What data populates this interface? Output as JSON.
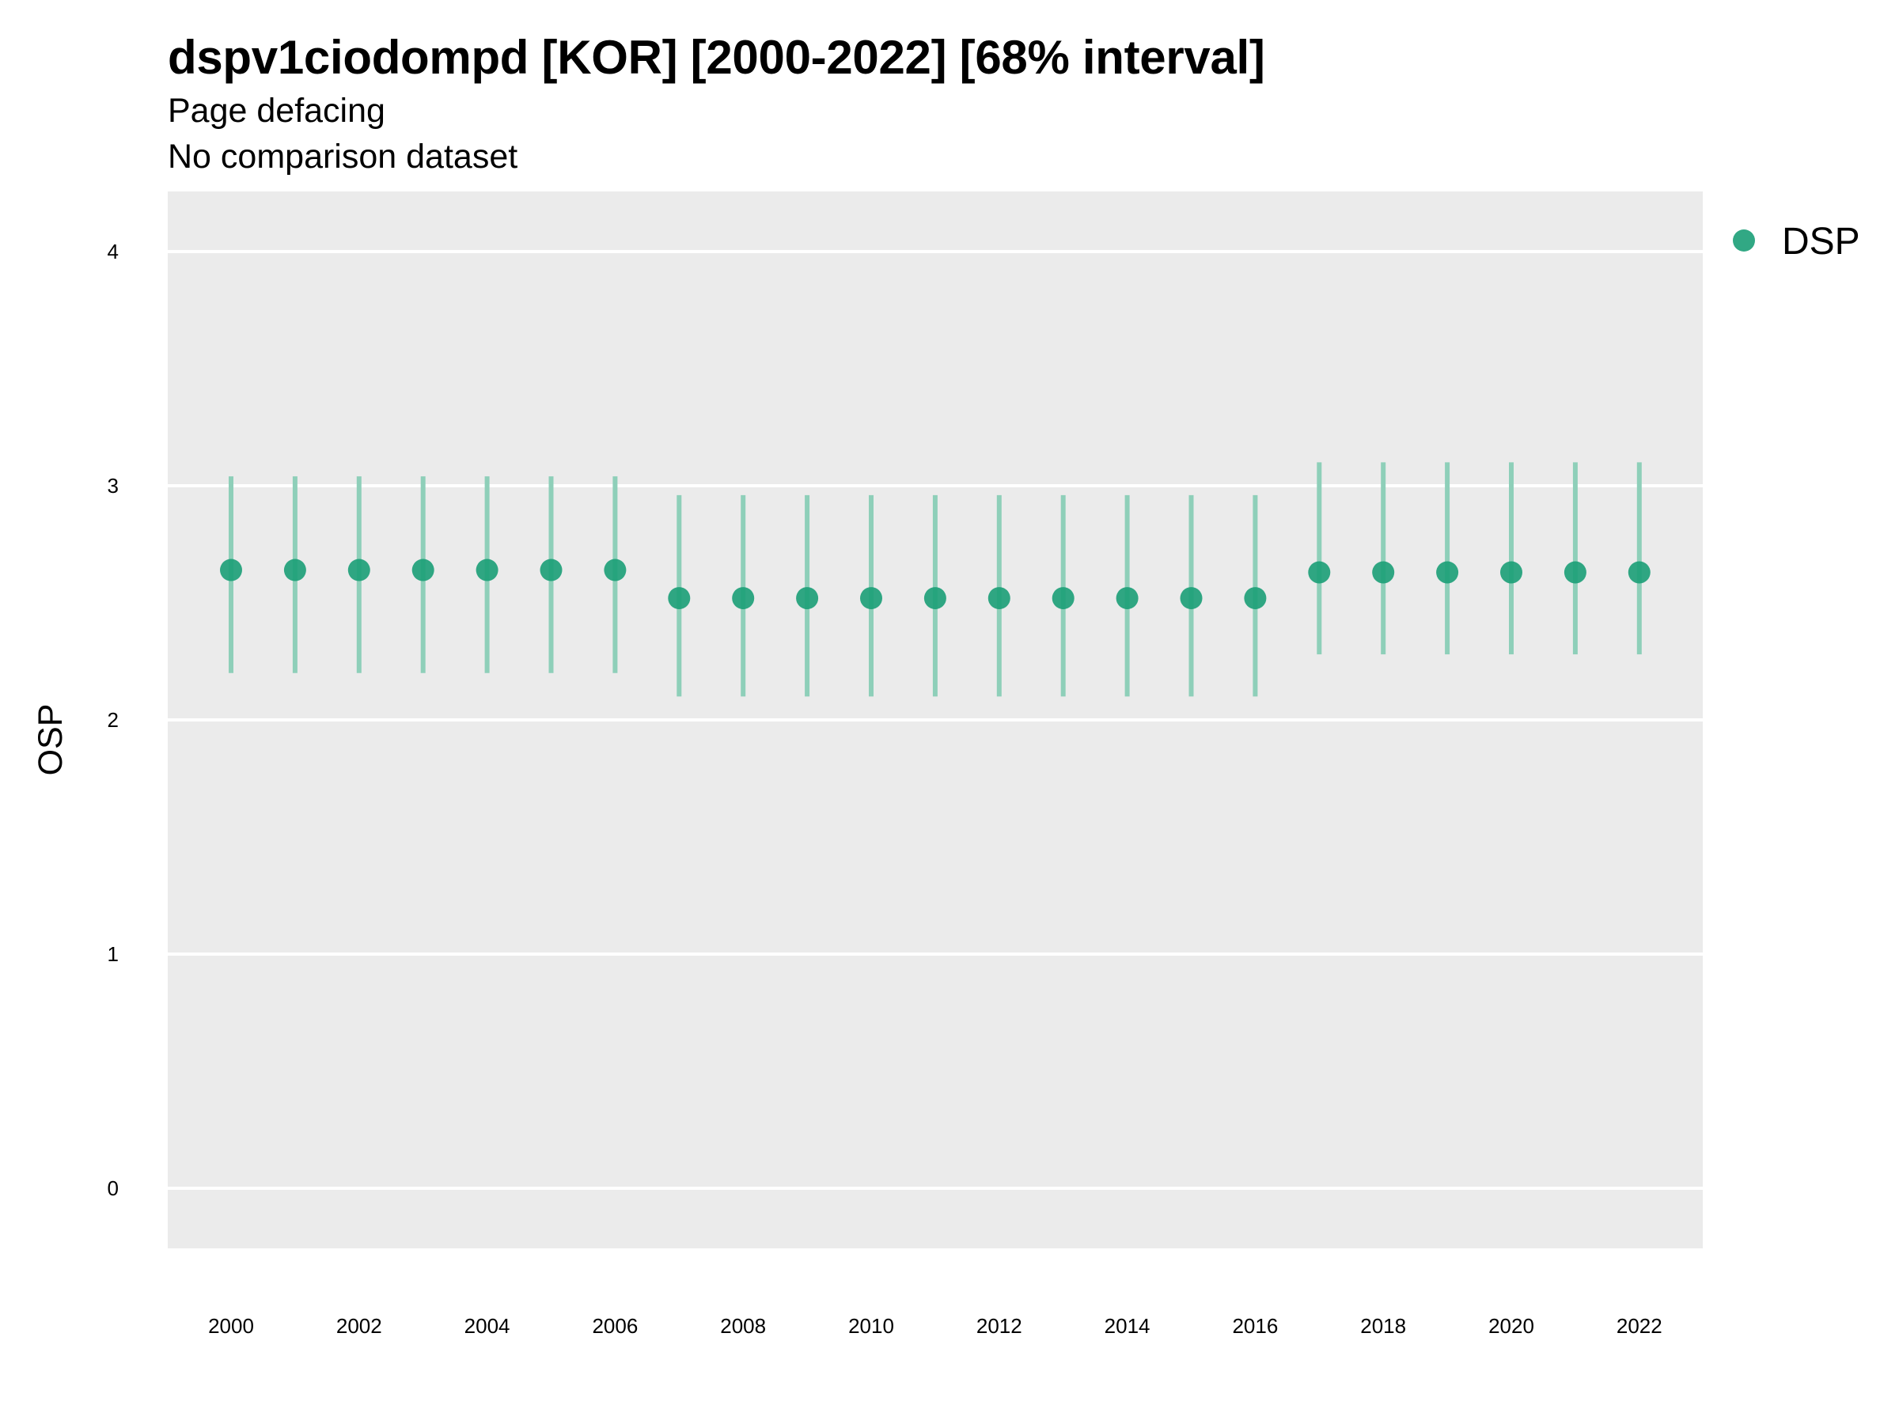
{
  "chart_data": {
    "type": "scatter",
    "title": "dspv1ciodompd [KOR] [2000-2022] [68% interval]",
    "subtitle": "Page defacing",
    "subtitle2": "No comparison dataset",
    "ylabel": "OSP",
    "xlabel": "",
    "ylim": [
      -0.25,
      4.25
    ],
    "yticks": [
      0,
      1,
      2,
      3,
      4
    ],
    "xticks": [
      2000,
      2002,
      2004,
      2006,
      2008,
      2010,
      2012,
      2014,
      2016,
      2018,
      2020,
      2022
    ],
    "grid": true,
    "legend_position": "right",
    "colors": {
      "point": "#1b9e77",
      "interval": "#8ecfb9",
      "panel": "#ebebeb",
      "grid": "#ffffff"
    },
    "series": [
      {
        "name": "DSP",
        "x": [
          2000,
          2001,
          2002,
          2003,
          2004,
          2005,
          2006,
          2007,
          2008,
          2009,
          2010,
          2011,
          2012,
          2013,
          2014,
          2015,
          2016,
          2017,
          2018,
          2019,
          2020,
          2021,
          2022
        ],
        "y": [
          2.64,
          2.64,
          2.64,
          2.64,
          2.64,
          2.64,
          2.64,
          2.52,
          2.52,
          2.52,
          2.52,
          2.52,
          2.52,
          2.52,
          2.52,
          2.52,
          2.52,
          2.63,
          2.63,
          2.63,
          2.63,
          2.63,
          2.63
        ],
        "lower": [
          2.2,
          2.2,
          2.2,
          2.2,
          2.2,
          2.2,
          2.2,
          2.1,
          2.1,
          2.1,
          2.1,
          2.1,
          2.1,
          2.1,
          2.1,
          2.1,
          2.1,
          2.28,
          2.28,
          2.28,
          2.28,
          2.28,
          2.28
        ],
        "upper": [
          3.04,
          3.04,
          3.04,
          3.04,
          3.04,
          3.04,
          3.04,
          2.96,
          2.96,
          2.96,
          2.96,
          2.96,
          2.96,
          2.96,
          2.96,
          2.96,
          2.96,
          3.1,
          3.1,
          3.1,
          3.1,
          3.1,
          3.1
        ]
      }
    ]
  }
}
